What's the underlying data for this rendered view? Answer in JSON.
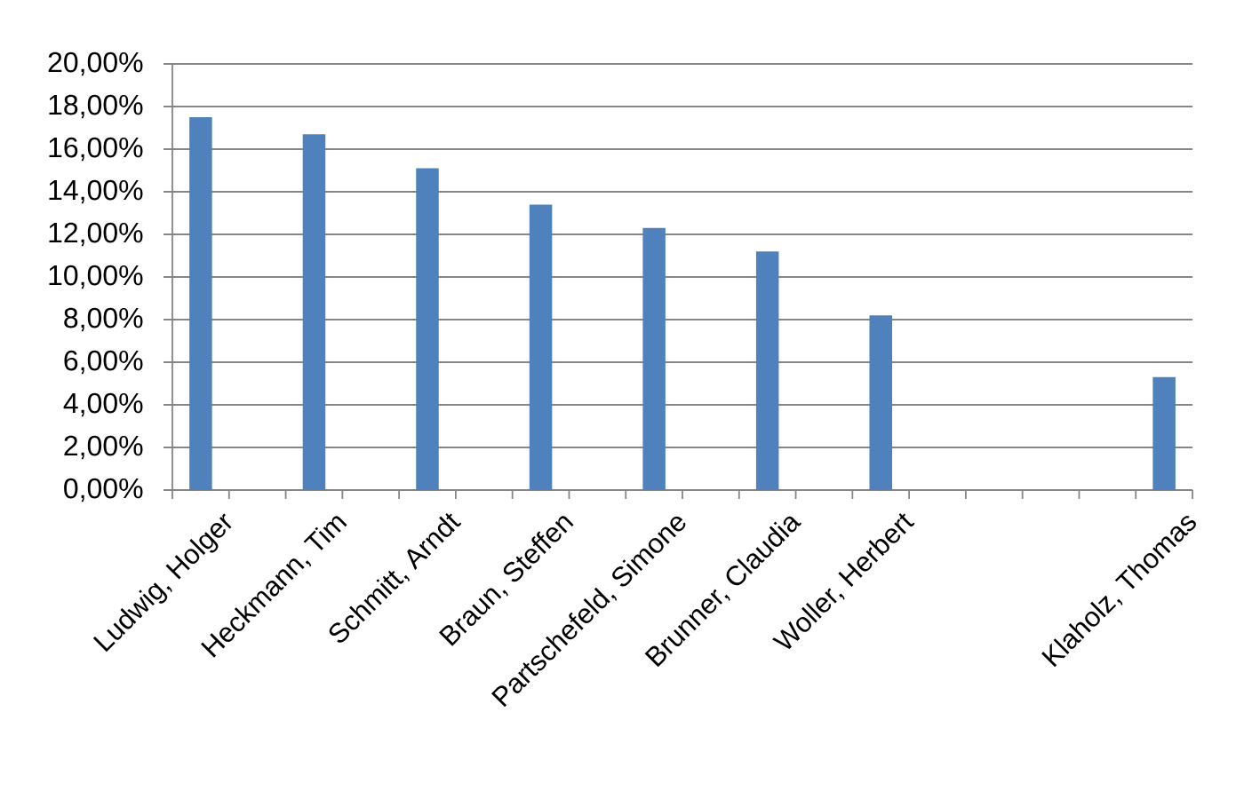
{
  "chart_data": {
    "type": "bar",
    "categories": [
      "Ludwig, Holger",
      null,
      "Heckmann, Tim",
      null,
      "Schmitt, Arndt",
      null,
      "Braun, Steffen",
      null,
      "Partschefeld, Simone",
      null,
      "Brunner, Claudia",
      null,
      "Woller, Herbert",
      null,
      null,
      null,
      null,
      "Klaholz, Thomas"
    ],
    "values": [
      17.5,
      null,
      16.7,
      null,
      15.1,
      null,
      13.4,
      null,
      12.3,
      null,
      11.2,
      null,
      8.2,
      null,
      null,
      null,
      null,
      5.3
    ],
    "color": "#4f81bd",
    "ylim": [
      0,
      20
    ],
    "yticks": [
      {
        "value": 0,
        "label": "0,00%"
      },
      {
        "value": 2,
        "label": "2,00%"
      },
      {
        "value": 4,
        "label": "4,00%"
      },
      {
        "value": 6,
        "label": "6,00%"
      },
      {
        "value": 8,
        "label": "8,00%"
      },
      {
        "value": 10,
        "label": "10,00%"
      },
      {
        "value": 12,
        "label": "12,00%"
      },
      {
        "value": 14,
        "label": "14,00%"
      },
      {
        "value": 16,
        "label": "16,00%"
      },
      {
        "value": 18,
        "label": "18,00%"
      },
      {
        "value": 20,
        "label": "20,00%"
      }
    ],
    "grid": "y"
  }
}
